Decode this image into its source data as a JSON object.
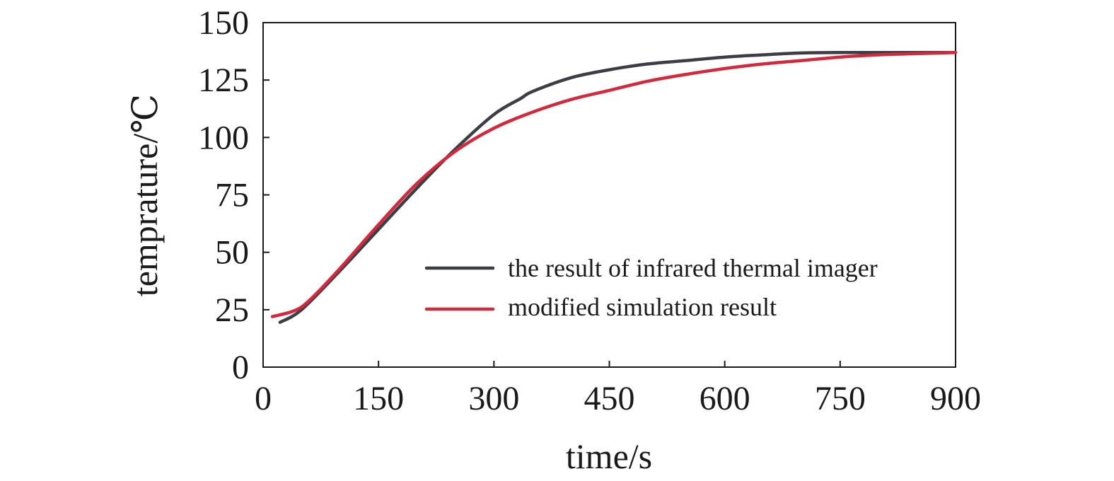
{
  "chart_data": {
    "type": "line",
    "title": "",
    "xlabel": "time/s",
    "ylabel": "temprature/℃",
    "xlim": [
      0,
      900
    ],
    "ylim": [
      0,
      150
    ],
    "xticks": [
      0,
      150,
      300,
      450,
      600,
      750,
      900
    ],
    "yticks": [
      0,
      25,
      50,
      75,
      100,
      125,
      150
    ],
    "xtick_labels": [
      "0",
      "150",
      "300",
      "450",
      "600",
      "750",
      "900"
    ],
    "ytick_labels": [
      "0",
      "25",
      "50",
      "75",
      "100",
      "125",
      "150"
    ],
    "grid": false,
    "legend_position": "bottom-right",
    "series": [
      {
        "name": "the result of infrared thermal imager",
        "color": "#3d3d45",
        "x": [
          22,
          50,
          100,
          150,
          200,
          250,
          300,
          335,
          350,
          400,
          450,
          500,
          550,
          600,
          650,
          700,
          750,
          800,
          850,
          900
        ],
        "y": [
          19.5,
          25,
          42,
          60,
          78,
          95,
          110,
          117,
          120,
          126,
          129.5,
          132,
          133.5,
          135,
          136,
          136.8,
          137,
          137,
          137,
          137
        ]
      },
      {
        "name": "modified simulation result",
        "color": "#d02a3e",
        "x": [
          12,
          40,
          60,
          100,
          150,
          200,
          250,
          300,
          350,
          400,
          450,
          500,
          550,
          600,
          650,
          700,
          750,
          800,
          850,
          900
        ],
        "y": [
          22,
          24.5,
          29,
          43,
          62,
          80,
          94,
          104,
          111,
          116.5,
          120.5,
          124.5,
          127.5,
          130,
          132,
          133.5,
          135,
          136,
          136.5,
          137
        ]
      }
    ]
  }
}
